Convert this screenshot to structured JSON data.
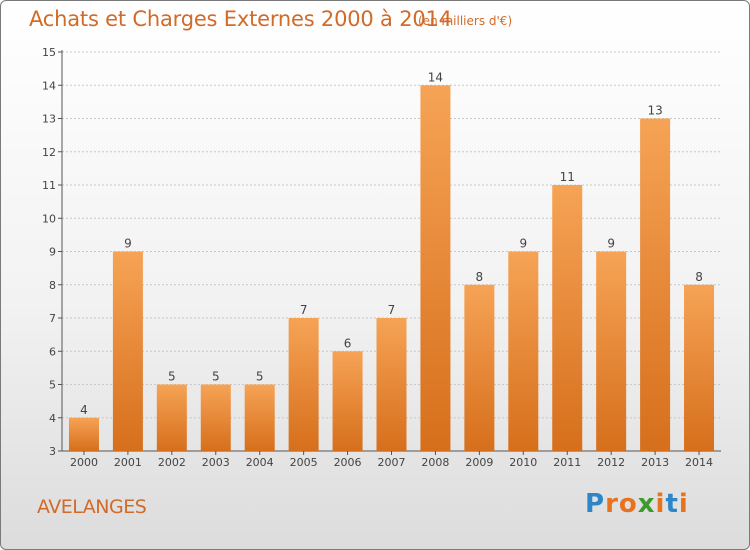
{
  "title": "Achats et Charges Externes 2000 à 2014",
  "subtitle": "(en milliers d'€)",
  "commune": "AVELANGES",
  "logo": {
    "text": "Proxiti",
    "letter_colors": [
      "#2e86c8",
      "#e8731f",
      "#e8731f",
      "#3c9b2c",
      "#e8731f",
      "#2e86c8",
      "#e8731f"
    ]
  },
  "colors": {
    "bar_top": "#f6a355",
    "bar_bottom": "#d66f1c",
    "text_accent": "#d26a28",
    "grid": "#c8c8c8"
  },
  "chart_data": {
    "type": "bar",
    "categories": [
      "2000",
      "2001",
      "2002",
      "2003",
      "2004",
      "2005",
      "2006",
      "2007",
      "2008",
      "2009",
      "2010",
      "2011",
      "2012",
      "2013",
      "2014"
    ],
    "values": [
      4,
      9,
      5,
      5,
      5,
      7,
      6,
      7,
      14,
      8,
      9,
      11,
      9,
      13,
      8
    ],
    "ylim": [
      3,
      15
    ],
    "yticks": [
      "3",
      "4",
      "5",
      "6",
      "7",
      "8",
      "9",
      "10",
      "11",
      "12",
      "13",
      "14",
      "15"
    ],
    "xlabel": "",
    "ylabel": "",
    "grid": true
  }
}
